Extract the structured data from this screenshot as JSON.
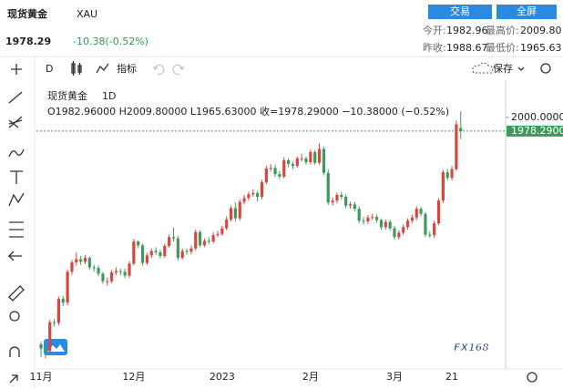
{
  "header": {
    "title": "现货黄金",
    "symbol": "XAU",
    "price": "1978.29",
    "change": "-10.38(-0.52%)",
    "buttons": [
      "交易",
      "全屏"
    ],
    "stats": [
      [
        "今开:",
        "1982.96"
      ],
      [
        "最高价:",
        "2009.80"
      ],
      [
        "昨收:",
        "1988.67"
      ],
      [
        "最低价:",
        "1965.63"
      ]
    ]
  },
  "toolbar": {
    "interval": "D",
    "indicators": "指标",
    "save": "保存"
  },
  "legend": {
    "name": "现货黄金",
    "interval": "1D",
    "ohlc_text": "O1982.96000  H2009.80000  L1965.63000  收=1978.29000  −10.38000 (−0.52%)"
  },
  "watermark": "FX168",
  "chart_data": {
    "type": "candlestick",
    "categories": [
      "11月",
      null,
      null,
      null,
      null,
      null,
      null,
      null,
      null,
      null,
      null,
      null,
      null,
      null,
      null,
      null,
      null,
      null,
      null,
      null,
      null,
      "12月",
      null,
      null,
      null,
      null,
      null,
      null,
      null,
      null,
      null,
      null,
      null,
      null,
      null,
      null,
      null,
      null,
      null,
      null,
      null,
      "2023",
      null,
      null,
      null,
      null,
      null,
      null,
      null,
      null,
      null,
      null,
      null,
      null,
      null,
      null,
      null,
      null,
      null,
      null,
      null,
      "2月",
      null,
      null,
      null,
      null,
      null,
      null,
      null,
      null,
      null,
      null,
      null,
      null,
      null,
      null,
      null,
      null,
      null,
      null,
      "3月",
      null,
      null,
      null,
      null,
      null,
      null,
      null,
      null,
      null,
      null,
      null,
      null,
      "21"
    ],
    "ohlc": [
      [
        1640,
        1644,
        1620,
        1633
      ],
      [
        1633,
        1637,
        1618,
        1629
      ],
      [
        1629,
        1679,
        1625,
        1675
      ],
      [
        1675,
        1680,
        1668,
        1674
      ],
      [
        1674,
        1716,
        1670,
        1712
      ],
      [
        1712,
        1717,
        1700,
        1706
      ],
      [
        1706,
        1759,
        1702,
        1755
      ],
      [
        1755,
        1774,
        1750,
        1770
      ],
      [
        1770,
        1786,
        1765,
        1775
      ],
      [
        1775,
        1780,
        1766,
        1771
      ],
      [
        1771,
        1782,
        1767,
        1777
      ],
      [
        1777,
        1780,
        1758,
        1762
      ],
      [
        1762,
        1766,
        1755,
        1761
      ],
      [
        1761,
        1765,
        1748,
        1752
      ],
      [
        1752,
        1755,
        1736,
        1740
      ],
      [
        1740,
        1746,
        1733,
        1740
      ],
      [
        1740,
        1758,
        1737,
        1754
      ],
      [
        1754,
        1762,
        1750,
        1756
      ],
      [
        1756,
        1760,
        1750,
        1755
      ],
      [
        1755,
        1760,
        1745,
        1749
      ],
      [
        1749,
        1772,
        1745,
        1768
      ],
      [
        1768,
        1807,
        1765,
        1803
      ],
      [
        1803,
        1805,
        1792,
        1797
      ],
      [
        1797,
        1800,
        1765,
        1769
      ],
      [
        1769,
        1785,
        1766,
        1781
      ],
      [
        1781,
        1792,
        1777,
        1788
      ],
      [
        1788,
        1794,
        1782,
        1786
      ],
      [
        1786,
        1790,
        1776,
        1780
      ],
      [
        1780,
        1800,
        1777,
        1796
      ],
      [
        1796,
        1814,
        1793,
        1810
      ],
      [
        1810,
        1825,
        1803,
        1808
      ],
      [
        1808,
        1812,
        1773,
        1777
      ],
      [
        1777,
        1792,
        1774,
        1788
      ],
      [
        1788,
        1792,
        1782,
        1787
      ],
      [
        1787,
        1797,
        1783,
        1792
      ],
      [
        1792,
        1822,
        1789,
        1818
      ],
      [
        1818,
        1821,
        1794,
        1797
      ],
      [
        1797,
        1808,
        1794,
        1804
      ],
      [
        1804,
        1810,
        1799,
        1803
      ],
      [
        1803,
        1818,
        1800,
        1813
      ],
      [
        1813,
        1820,
        1810,
        1815
      ],
      [
        1815,
        1828,
        1812,
        1824
      ],
      [
        1824,
        1843,
        1821,
        1838
      ],
      [
        1838,
        1860,
        1835,
        1856
      ],
      [
        1856,
        1865,
        1835,
        1840
      ],
      [
        1840,
        1870,
        1836,
        1866
      ],
      [
        1866,
        1877,
        1862,
        1872
      ],
      [
        1872,
        1882,
        1868,
        1878
      ],
      [
        1878,
        1886,
        1874,
        1880
      ],
      [
        1880,
        1884,
        1867,
        1874
      ],
      [
        1874,
        1901,
        1870,
        1897
      ],
      [
        1897,
        1923,
        1894,
        1919
      ],
      [
        1919,
        1926,
        1914,
        1920
      ],
      [
        1920,
        1925,
        1905,
        1910
      ],
      [
        1910,
        1915,
        1902,
        1906
      ],
      [
        1906,
        1937,
        1903,
        1932
      ],
      [
        1932,
        1935,
        1921,
        1926
      ],
      [
        1926,
        1930,
        1918,
        1923
      ],
      [
        1923,
        1938,
        1920,
        1935
      ],
      [
        1935,
        1942,
        1930,
        1935
      ],
      [
        1935,
        1938,
        1925,
        1929
      ],
      [
        1929,
        1949,
        1925,
        1945
      ],
      [
        1945,
        1948,
        1925,
        1928
      ],
      [
        1928,
        1959,
        1925,
        1950
      ],
      [
        1950,
        1954,
        1908,
        1912
      ],
      [
        1912,
        1918,
        1861,
        1865
      ],
      [
        1865,
        1873,
        1860,
        1868
      ],
      [
        1868,
        1881,
        1864,
        1877
      ],
      [
        1877,
        1882,
        1870,
        1874
      ],
      [
        1874,
        1878,
        1856,
        1860
      ],
      [
        1860,
        1866,
        1855,
        1862
      ],
      [
        1862,
        1866,
        1851,
        1855
      ],
      [
        1855,
        1859,
        1832,
        1836
      ],
      [
        1836,
        1842,
        1830,
        1835
      ],
      [
        1835,
        1845,
        1831,
        1841
      ],
      [
        1841,
        1847,
        1837,
        1842
      ],
      [
        1842,
        1846,
        1833,
        1837
      ],
      [
        1837,
        1840,
        1822,
        1826
      ],
      [
        1826,
        1838,
        1822,
        1834
      ],
      [
        1834,
        1838,
        1820,
        1824
      ],
      [
        1824,
        1828,
        1806,
        1810
      ],
      [
        1810,
        1821,
        1806,
        1817
      ],
      [
        1817,
        1830,
        1813,
        1826
      ],
      [
        1826,
        1840,
        1822,
        1836
      ],
      [
        1836,
        1846,
        1832,
        1841
      ],
      [
        1841,
        1859,
        1837,
        1855
      ],
      [
        1855,
        1858,
        1843,
        1847
      ],
      [
        1847,
        1850,
        1810,
        1814
      ],
      [
        1814,
        1819,
        1809,
        1813
      ],
      [
        1813,
        1836,
        1809,
        1832
      ],
      [
        1832,
        1872,
        1829,
        1868
      ],
      [
        1868,
        1917,
        1864,
        1913
      ],
      [
        1913,
        1918,
        1900,
        1904
      ],
      [
        1904,
        1923,
        1900,
        1918
      ],
      [
        1918,
        1995,
        1915,
        1989
      ],
      [
        1982.96,
        2009.8,
        1965.63,
        1978.29
      ],
      null
    ],
    "up_color": "#d9463e",
    "down_color": "#3d9a5c",
    "ylim": [
      1608,
      2049
    ],
    "yticks": [
      {
        "value": 2000,
        "label": "2000.00000"
      }
    ],
    "price_line": {
      "value": 1978.29,
      "label": "1978.29000",
      "color": "#3d9a5c"
    }
  }
}
